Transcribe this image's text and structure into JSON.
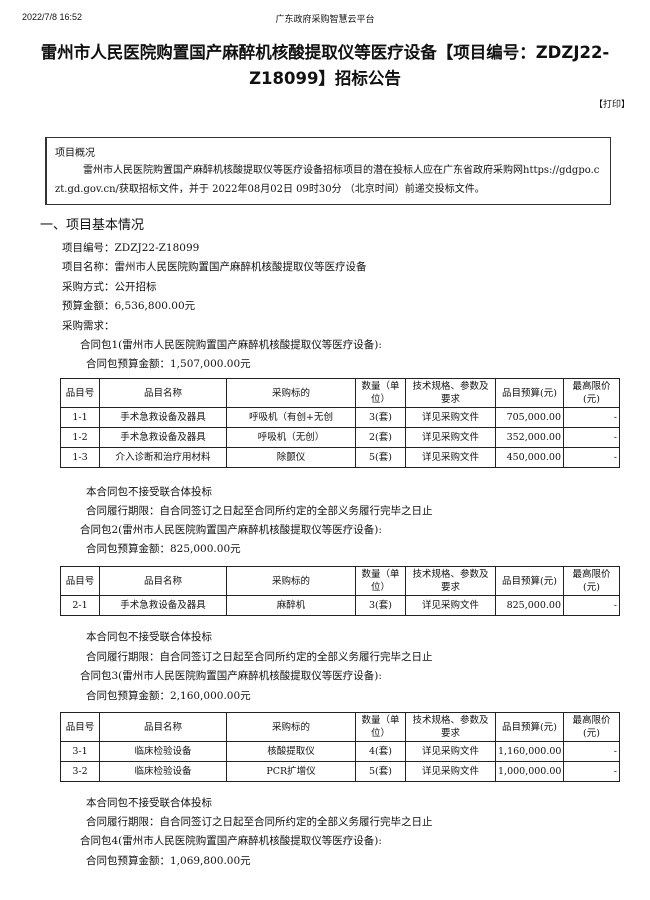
{
  "header": {
    "datetime": "2022/7/8 16:52",
    "site": "广东政府采购智慧云平台"
  },
  "title": "雷州市人民医院购置国产麻醉机核酸提取仪等医疗设备【项目编号：ZDZJ22-Z18099】招标公告",
  "print_label": "【打印】",
  "overview": {
    "heading": "项目概况",
    "text": "雷州市人民医院购置国产麻醉机核酸提取仪等医疗设备招标项目的潜在投标人应在广东省政府采购网https://gdgpo.czt.gd.gov.cn/获取招标文件，并于 2022年08月02日 09时30分 （北京时间）前递交投标文件。"
  },
  "section1": {
    "heading": "一、项目基本情况",
    "lines": [
      "项目编号：ZDZJ22-Z18099",
      "项目名称：雷州市人民医院购置国产麻醉机核酸提取仪等医疗设备",
      "采购方式：公开招标",
      "预算金额：6,536,800.00元",
      "采购需求："
    ]
  },
  "packages": [
    {
      "title": "合同包1(雷州市人民医院购置国产麻醉机核酸提取仪等医疗设备):",
      "budget": "合同包预算金额：1,507,000.00元",
      "headers": [
        "品目号",
        "品目名称",
        "采购标的",
        "数量（单位）",
        "技术规格、参数及要求",
        "品目预算(元)",
        "最高限价(元)"
      ],
      "rows": [
        [
          "1-1",
          "手术急救设备及器具",
          "呼吸机（有创+无创",
          "3(套)",
          "详见采购文件",
          "705,000.00",
          "-"
        ],
        [
          "1-2",
          "手术急救设备及器具",
          "呼吸机（无创）",
          "2(套)",
          "详见采购文件",
          "352,000.00",
          "-"
        ],
        [
          "1-3",
          "介入诊断和治疗用材料",
          "除颤仪",
          "5(套)",
          "详见采购文件",
          "450,000.00",
          "-"
        ]
      ],
      "notes": [
        "本合同包不接受联合体投标",
        "合同履行期限：自合同签订之日起至合同所约定的全部义务履行完毕之日止"
      ]
    },
    {
      "title": "合同包2(雷州市人民医院购置国产麻醉机核酸提取仪等医疗设备):",
      "budget": "合同包预算金额：825,000.00元",
      "headers": [
        "品目号",
        "品目名称",
        "采购标的",
        "数量（单位）",
        "技术规格、参数及要求",
        "品目预算(元)",
        "最高限价(元)"
      ],
      "rows": [
        [
          "2-1",
          "手术急救设备及器具",
          "麻醉机",
          "3(套)",
          "详见采购文件",
          "825,000.00",
          "-"
        ]
      ],
      "notes": [
        "本合同包不接受联合体投标",
        "合同履行期限：自合同签订之日起至合同所约定的全部义务履行完毕之日止"
      ]
    },
    {
      "title": "合同包3(雷州市人民医院购置国产麻醉机核酸提取仪等医疗设备):",
      "budget": "合同包预算金额：2,160,000.00元",
      "headers": [
        "品目号",
        "品目名称",
        "采购标的",
        "数量（单位）",
        "技术规格、参数及要求",
        "品目预算(元)",
        "最高限价(元)"
      ],
      "rows": [
        [
          "3-1",
          "临床检验设备",
          "核酸提取仪",
          "4(套)",
          "详见采购文件",
          "1,160,000.00",
          "-"
        ],
        [
          "3-2",
          "临床检验设备",
          "PCR扩增仪",
          "5(套)",
          "详见采购文件",
          "1,000,000.00",
          "-"
        ]
      ],
      "notes": [
        "本合同包不接受联合体投标",
        "合同履行期限：自合同签订之日起至合同所约定的全部义务履行完毕之日止"
      ]
    },
    {
      "title": "合同包4(雷州市人民医院购置国产麻醉机核酸提取仪等医疗设备):",
      "budget": "合同包预算金额：1,069,800.00元"
    }
  ]
}
